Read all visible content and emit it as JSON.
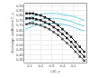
{
  "chart_data": {
    "type": "line",
    "xlabel": "L/D_v",
    "ylabel": "discharge coefficient C_v",
    "xlim": [
      0.05,
      0.62
    ],
    "ylim": [
      0.32,
      0.92
    ],
    "xticks": [
      0.1,
      0.2,
      0.3,
      0.4,
      0.5
    ],
    "yticks": [
      0.35,
      {
        "value": 0.4,
        "label": "0.40"
      },
      0.45,
      {
        "value": 0.5,
        "label": "0.50"
      },
      0.55,
      {
        "value": 0.6,
        "label": "0.60"
      },
      0.65,
      {
        "value": 0.7,
        "label": "0.70"
      },
      0.75,
      {
        "value": 0.8,
        "label": "0.80"
      },
      0.85,
      {
        "value": 0.9,
        "label": "0.90"
      }
    ],
    "grid": true,
    "series": [
      {
        "color": "#6dd4e0",
        "x": [
          0.06,
          0.1,
          0.15,
          0.2,
          0.25,
          0.3,
          0.35,
          0.4,
          0.45,
          0.5,
          0.55,
          0.6
        ],
        "values": [
          0.76,
          0.78,
          0.8,
          0.81,
          0.82,
          0.82,
          0.82,
          0.81,
          0.8,
          0.79,
          0.77,
          0.75
        ]
      },
      {
        "color": "#6dd4e0",
        "x": [
          0.06,
          0.1,
          0.15,
          0.2,
          0.25,
          0.3,
          0.35,
          0.4,
          0.45,
          0.5,
          0.55,
          0.6
        ],
        "values": [
          0.71,
          0.73,
          0.75,
          0.76,
          0.77,
          0.77,
          0.77,
          0.76,
          0.75,
          0.73,
          0.71,
          0.69
        ]
      },
      {
        "color": "#6dd4e0",
        "x": [
          0.06,
          0.1,
          0.15,
          0.2,
          0.25,
          0.3,
          0.35,
          0.4,
          0.45,
          0.5,
          0.55,
          0.6
        ],
        "values": [
          0.66,
          0.68,
          0.7,
          0.71,
          0.72,
          0.72,
          0.72,
          0.71,
          0.7,
          0.68,
          0.66,
          0.64
        ]
      },
      {
        "color": "#222222",
        "marker": "square",
        "x": [
          0.07,
          0.1,
          0.13,
          0.16,
          0.2,
          0.24,
          0.28,
          0.32,
          0.36,
          0.4,
          0.44,
          0.48,
          0.52,
          0.56,
          0.6
        ],
        "values": [
          0.82,
          0.82,
          0.82,
          0.81,
          0.8,
          0.78,
          0.76,
          0.73,
          0.7,
          0.66,
          0.62,
          0.58,
          0.53,
          0.48,
          0.43
        ]
      },
      {
        "color": "#222222",
        "marker": "square",
        "x": [
          0.07,
          0.1,
          0.13,
          0.16,
          0.2,
          0.24,
          0.28,
          0.32,
          0.36,
          0.4,
          0.44,
          0.48,
          0.52,
          0.56,
          0.6
        ],
        "values": [
          0.77,
          0.77,
          0.77,
          0.76,
          0.75,
          0.73,
          0.71,
          0.68,
          0.65,
          0.61,
          0.57,
          0.53,
          0.48,
          0.43,
          0.38
        ]
      },
      {
        "color": "#555555",
        "marker": "square",
        "x": [
          0.07,
          0.1,
          0.13,
          0.16,
          0.2,
          0.24,
          0.28,
          0.32,
          0.36,
          0.4,
          0.44,
          0.48,
          0.52,
          0.56,
          0.6
        ],
        "values": [
          0.71,
          0.72,
          0.72,
          0.71,
          0.7,
          0.68,
          0.66,
          0.63,
          0.6,
          0.56,
          0.52,
          0.48,
          0.43,
          0.38,
          0.34
        ]
      }
    ]
  }
}
